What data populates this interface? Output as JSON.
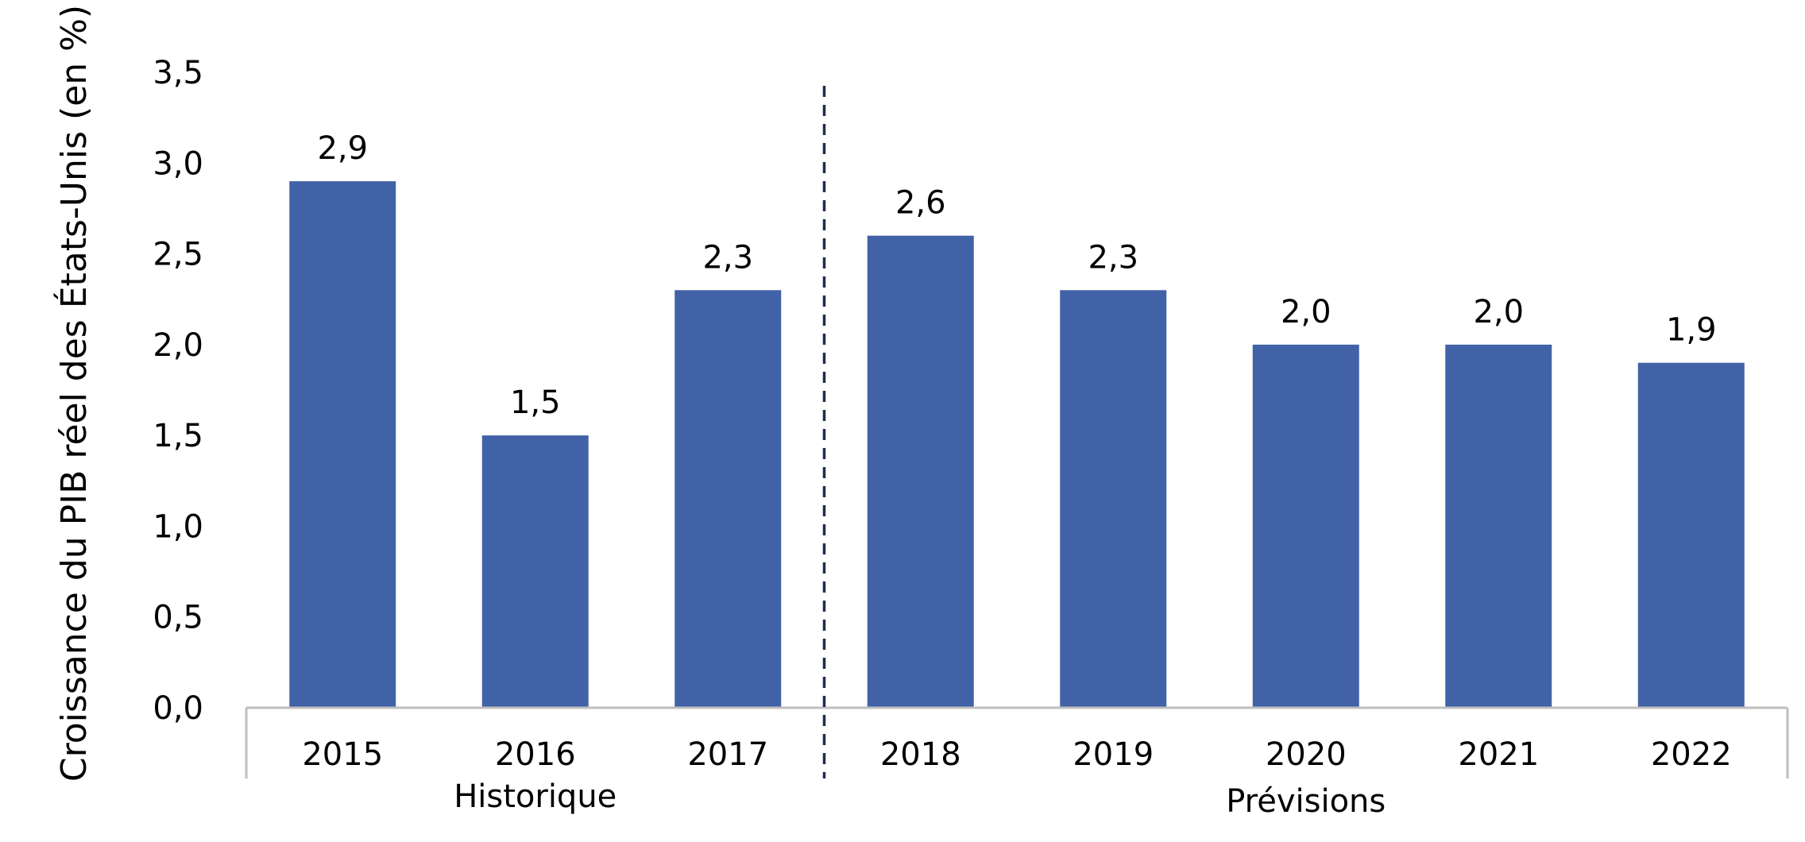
{
  "chart_data": {
    "type": "bar",
    "categories": [
      "2015",
      "2016",
      "2017",
      "2018",
      "2019",
      "2020",
      "2021",
      "2022"
    ],
    "values": [
      2.9,
      1.5,
      2.3,
      2.6,
      2.3,
      2.0,
      2.0,
      1.9
    ],
    "data_labels": [
      "2,9",
      "1,5",
      "2,3",
      "2,6",
      "2,3",
      "2,0",
      "2,0",
      "1,9"
    ],
    "ylabel": "Croissance du PIB réel des États-Unis (en %)",
    "xlabel": "",
    "ylim": [
      0,
      3.5
    ],
    "yticks": [
      "0,0",
      "0,5",
      "1,0",
      "1,5",
      "2,0",
      "2,5",
      "3,0",
      "3,5"
    ],
    "groups": [
      {
        "label": "Historique",
        "categories": [
          "2015",
          "2016",
          "2017"
        ]
      },
      {
        "label": "Prévisions",
        "categories": [
          "2018",
          "2019",
          "2020",
          "2021",
          "2022"
        ]
      }
    ],
    "divider": "dashed line between 2017 and 2018",
    "bar_color": "#4262A8",
    "grid": false,
    "legend": "none"
  }
}
